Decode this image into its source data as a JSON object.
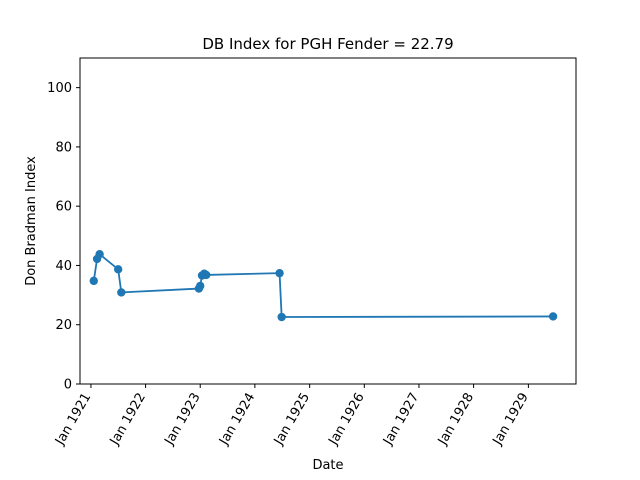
{
  "chart_data": {
    "type": "line",
    "title": "DB Index for PGH Fender = 22.79",
    "xlabel": "Date",
    "ylabel": "Don Bradman Index",
    "ylim": [
      0,
      110
    ],
    "xlim": [
      "1920-10-20",
      "1929-11-15"
    ],
    "yticks": [
      0,
      20,
      40,
      60,
      80,
      100
    ],
    "xticks": [
      {
        "date": "1921-01-01",
        "label": "Jan 1921"
      },
      {
        "date": "1922-01-01",
        "label": "Jan 1922"
      },
      {
        "date": "1923-01-01",
        "label": "Jan 1923"
      },
      {
        "date": "1924-01-01",
        "label": "Jan 1924"
      },
      {
        "date": "1925-01-01",
        "label": "Jan 1925"
      },
      {
        "date": "1926-01-01",
        "label": "Jan 1926"
      },
      {
        "date": "1927-01-01",
        "label": "Jan 1927"
      },
      {
        "date": "1928-01-01",
        "label": "Jan 1928"
      },
      {
        "date": "1929-01-01",
        "label": "Jan 1929"
      }
    ],
    "series": [
      {
        "color": "#1f77b4",
        "points": [
          {
            "x": "1921-01-20",
            "y": 34.8
          },
          {
            "x": "1921-02-11",
            "y": 42.2
          },
          {
            "x": "1921-02-28",
            "y": 43.8
          },
          {
            "x": "1921-07-02",
            "y": 38.7
          },
          {
            "x": "1921-07-23",
            "y": 30.9
          },
          {
            "x": "1922-12-23",
            "y": 32.2
          },
          {
            "x": "1923-01-01",
            "y": 33.1
          },
          {
            "x": "1923-01-13",
            "y": 36.6
          },
          {
            "x": "1923-01-28",
            "y": 37.2
          },
          {
            "x": "1923-02-10",
            "y": 36.8
          },
          {
            "x": "1924-06-14",
            "y": 37.4
          },
          {
            "x": "1924-06-28",
            "y": 22.6
          },
          {
            "x": "1929-06-15",
            "y": 22.79
          }
        ]
      }
    ],
    "grid": false
  }
}
